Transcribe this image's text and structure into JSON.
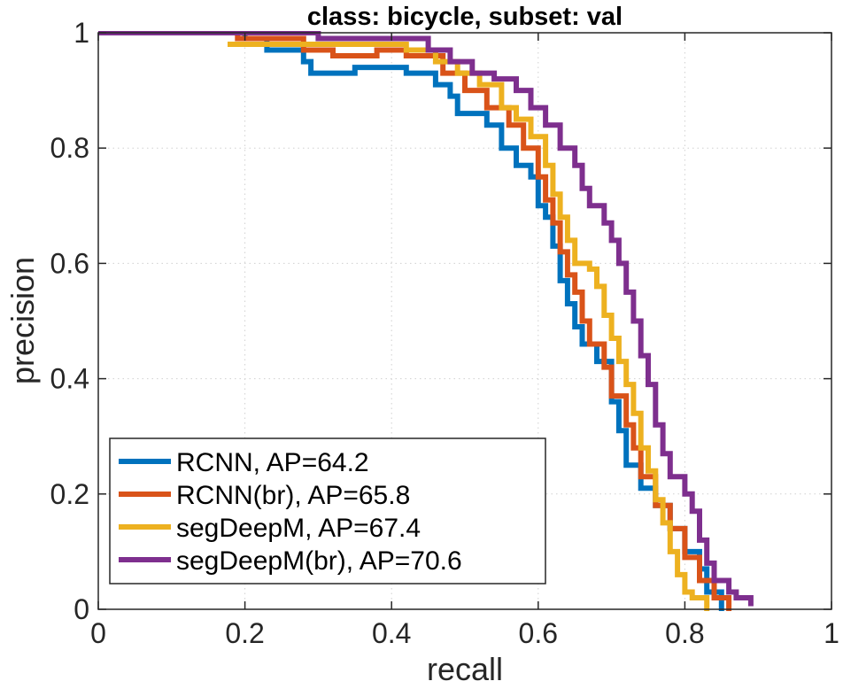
{
  "chart_data": {
    "type": "line",
    "title": "class: bicycle, subset: val",
    "xlabel": "recall",
    "ylabel": "precision",
    "xlim": [
      0,
      1
    ],
    "ylim": [
      0,
      1
    ],
    "xticks": [
      "0",
      "0.2",
      "0.4",
      "0.6",
      "0.8",
      "1"
    ],
    "yticks": [
      "0",
      "0.2",
      "0.4",
      "0.6",
      "0.8",
      "1"
    ],
    "grid": true,
    "legend_position": "bottom-left",
    "series": [
      {
        "name": "RCNN, AP=64.2",
        "color": "#0072BD",
        "points": [
          [
            0,
            1
          ],
          [
            0.18,
            1
          ],
          [
            0.2,
            0.99
          ],
          [
            0.23,
            0.97
          ],
          [
            0.28,
            0.95
          ],
          [
            0.29,
            0.93
          ],
          [
            0.35,
            0.94
          ],
          [
            0.42,
            0.93
          ],
          [
            0.46,
            0.91
          ],
          [
            0.48,
            0.89
          ],
          [
            0.49,
            0.86
          ],
          [
            0.51,
            0.86
          ],
          [
            0.53,
            0.84
          ],
          [
            0.55,
            0.8
          ],
          [
            0.57,
            0.77
          ],
          [
            0.59,
            0.75
          ],
          [
            0.6,
            0.7
          ],
          [
            0.61,
            0.68
          ],
          [
            0.62,
            0.63
          ],
          [
            0.63,
            0.57
          ],
          [
            0.64,
            0.53
          ],
          [
            0.65,
            0.49
          ],
          [
            0.66,
            0.46
          ],
          [
            0.68,
            0.43
          ],
          [
            0.7,
            0.36
          ],
          [
            0.71,
            0.31
          ],
          [
            0.72,
            0.25
          ],
          [
            0.74,
            0.21
          ],
          [
            0.76,
            0.18
          ],
          [
            0.78,
            0.14
          ],
          [
            0.8,
            0.1
          ],
          [
            0.82,
            0.07
          ],
          [
            0.83,
            0.03
          ],
          [
            0.85,
            0.0
          ]
        ]
      },
      {
        "name": "RCNN(br), AP=65.8",
        "color": "#D95319",
        "points": [
          [
            0,
            1
          ],
          [
            0.19,
            0.99
          ],
          [
            0.28,
            0.97
          ],
          [
            0.32,
            0.96
          ],
          [
            0.38,
            0.97
          ],
          [
            0.42,
            0.96
          ],
          [
            0.47,
            0.93
          ],
          [
            0.5,
            0.9
          ],
          [
            0.53,
            0.87
          ],
          [
            0.56,
            0.84
          ],
          [
            0.58,
            0.8
          ],
          [
            0.6,
            0.75
          ],
          [
            0.61,
            0.71
          ],
          [
            0.62,
            0.67
          ],
          [
            0.63,
            0.62
          ],
          [
            0.64,
            0.58
          ],
          [
            0.65,
            0.55
          ],
          [
            0.66,
            0.5
          ],
          [
            0.67,
            0.46
          ],
          [
            0.69,
            0.42
          ],
          [
            0.7,
            0.37
          ],
          [
            0.72,
            0.32
          ],
          [
            0.73,
            0.28
          ],
          [
            0.74,
            0.23
          ],
          [
            0.76,
            0.18
          ],
          [
            0.78,
            0.14
          ],
          [
            0.8,
            0.09
          ],
          [
            0.82,
            0.05
          ],
          [
            0.84,
            0.02
          ],
          [
            0.86,
            0.0
          ]
        ]
      },
      {
        "name": "segDeepM, AP=67.4",
        "color": "#EDB120",
        "points": [
          [
            0.18,
            0.98
          ],
          [
            0.24,
            0.98
          ],
          [
            0.3,
            0.98
          ],
          [
            0.42,
            0.97
          ],
          [
            0.46,
            0.95
          ],
          [
            0.49,
            0.93
          ],
          [
            0.52,
            0.91
          ],
          [
            0.55,
            0.87
          ],
          [
            0.57,
            0.85
          ],
          [
            0.59,
            0.82
          ],
          [
            0.61,
            0.77
          ],
          [
            0.62,
            0.72
          ],
          [
            0.63,
            0.68
          ],
          [
            0.64,
            0.64
          ],
          [
            0.65,
            0.6
          ],
          [
            0.67,
            0.59
          ],
          [
            0.68,
            0.56
          ],
          [
            0.69,
            0.51
          ],
          [
            0.7,
            0.47
          ],
          [
            0.71,
            0.43
          ],
          [
            0.72,
            0.39
          ],
          [
            0.73,
            0.34
          ],
          [
            0.74,
            0.28
          ],
          [
            0.75,
            0.24
          ],
          [
            0.76,
            0.19
          ],
          [
            0.77,
            0.15
          ],
          [
            0.78,
            0.1
          ],
          [
            0.79,
            0.06
          ],
          [
            0.8,
            0.03
          ],
          [
            0.81,
            0.02
          ],
          [
            0.83,
            0.0
          ]
        ]
      },
      {
        "name": "segDeepM(br), AP=70.6",
        "color": "#7E2F8E",
        "points": [
          [
            0,
            1
          ],
          [
            0.2,
            1
          ],
          [
            0.3,
            0.99
          ],
          [
            0.38,
            0.99
          ],
          [
            0.43,
            0.99
          ],
          [
            0.45,
            0.97
          ],
          [
            0.48,
            0.95
          ],
          [
            0.51,
            0.93
          ],
          [
            0.54,
            0.92
          ],
          [
            0.57,
            0.9
          ],
          [
            0.59,
            0.87
          ],
          [
            0.61,
            0.84
          ],
          [
            0.63,
            0.8
          ],
          [
            0.65,
            0.77
          ],
          [
            0.66,
            0.73
          ],
          [
            0.67,
            0.7
          ],
          [
            0.69,
            0.67
          ],
          [
            0.7,
            0.64
          ],
          [
            0.71,
            0.6
          ],
          [
            0.72,
            0.55
          ],
          [
            0.73,
            0.5
          ],
          [
            0.74,
            0.44
          ],
          [
            0.75,
            0.39
          ],
          [
            0.76,
            0.32
          ],
          [
            0.77,
            0.27
          ],
          [
            0.78,
            0.23
          ],
          [
            0.8,
            0.2
          ],
          [
            0.81,
            0.17
          ],
          [
            0.82,
            0.12
          ],
          [
            0.83,
            0.08
          ],
          [
            0.84,
            0.05
          ],
          [
            0.86,
            0.03
          ],
          [
            0.87,
            0.02
          ],
          [
            0.89,
            0.01
          ]
        ]
      }
    ]
  }
}
